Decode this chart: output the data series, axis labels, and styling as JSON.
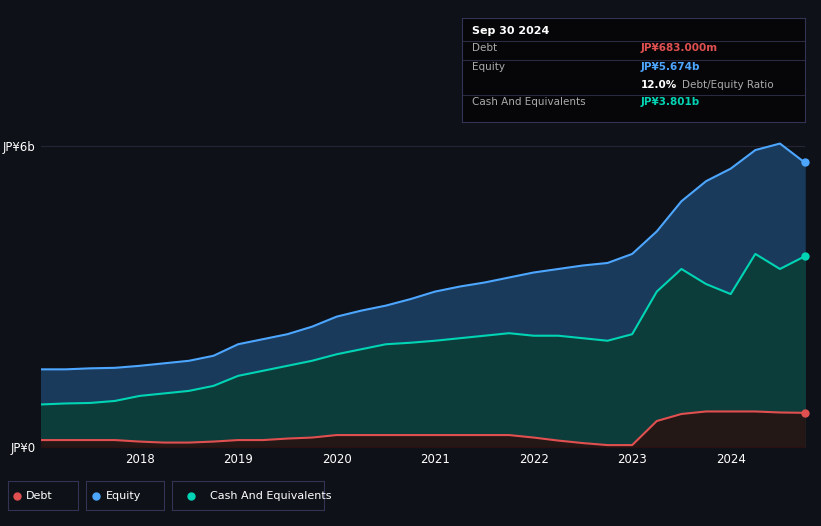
{
  "background_color": "#0e1117",
  "chart_bg": "#0e1117",
  "tooltip": {
    "date": "Sep 30 2024",
    "debt_label": "Debt",
    "debt_value": "JP¥683.000m",
    "equity_label": "Equity",
    "equity_value": "JP¥5.674b",
    "ratio_value": "12.0%",
    "ratio_label": "Debt/Equity Ratio",
    "cash_label": "Cash And Equivalents",
    "cash_value": "JP¥3.801b"
  },
  "ylabel_top": "JP¥6b",
  "ylabel_bottom": "JP¥0",
  "x_ticks": [
    "2018",
    "2019",
    "2020",
    "2021",
    "2022",
    "2023",
    "2024"
  ],
  "x_tick_pos": [
    2018,
    2019,
    2020,
    2021,
    2022,
    2023,
    2024
  ],
  "legend": [
    {
      "label": "Debt",
      "color": "#e05050"
    },
    {
      "label": "Equity",
      "color": "#4da6ff"
    },
    {
      "label": "Cash And Equivalents",
      "color": "#00d4b4"
    }
  ],
  "equity_line_color": "#4da6ff",
  "equity_fill_color": "#1a3a5c",
  "cash_line_color": "#00d4b4",
  "cash_fill_color": "#0d3d3a",
  "debt_line_color": "#e05050",
  "debt_fill_color": "#2a0f0f",
  "grid_color": "#252535",
  "years": [
    2017.0,
    2017.25,
    2017.5,
    2017.75,
    2018.0,
    2018.25,
    2018.5,
    2018.75,
    2019.0,
    2019.25,
    2019.5,
    2019.75,
    2020.0,
    2020.25,
    2020.5,
    2020.75,
    2021.0,
    2021.25,
    2021.5,
    2021.75,
    2022.0,
    2022.25,
    2022.5,
    2022.75,
    2023.0,
    2023.25,
    2023.5,
    2023.75,
    2024.0,
    2024.25,
    2024.5,
    2024.75
  ],
  "equity": [
    1.55,
    1.55,
    1.57,
    1.58,
    1.62,
    1.67,
    1.72,
    1.82,
    2.05,
    2.15,
    2.25,
    2.4,
    2.6,
    2.72,
    2.82,
    2.95,
    3.1,
    3.2,
    3.28,
    3.38,
    3.48,
    3.55,
    3.62,
    3.67,
    3.85,
    4.3,
    4.9,
    5.3,
    5.55,
    5.92,
    6.05,
    5.674
  ],
  "cash": [
    0.85,
    0.87,
    0.88,
    0.92,
    1.02,
    1.07,
    1.12,
    1.22,
    1.42,
    1.52,
    1.62,
    1.72,
    1.85,
    1.95,
    2.05,
    2.08,
    2.12,
    2.17,
    2.22,
    2.27,
    2.22,
    2.22,
    2.17,
    2.12,
    2.25,
    3.1,
    3.55,
    3.25,
    3.05,
    3.85,
    3.55,
    3.801
  ],
  "debt": [
    0.14,
    0.14,
    0.14,
    0.14,
    0.11,
    0.09,
    0.09,
    0.11,
    0.14,
    0.14,
    0.17,
    0.19,
    0.24,
    0.24,
    0.24,
    0.24,
    0.24,
    0.24,
    0.24,
    0.24,
    0.19,
    0.13,
    0.08,
    0.04,
    0.04,
    0.52,
    0.66,
    0.71,
    0.71,
    0.71,
    0.69,
    0.683
  ]
}
